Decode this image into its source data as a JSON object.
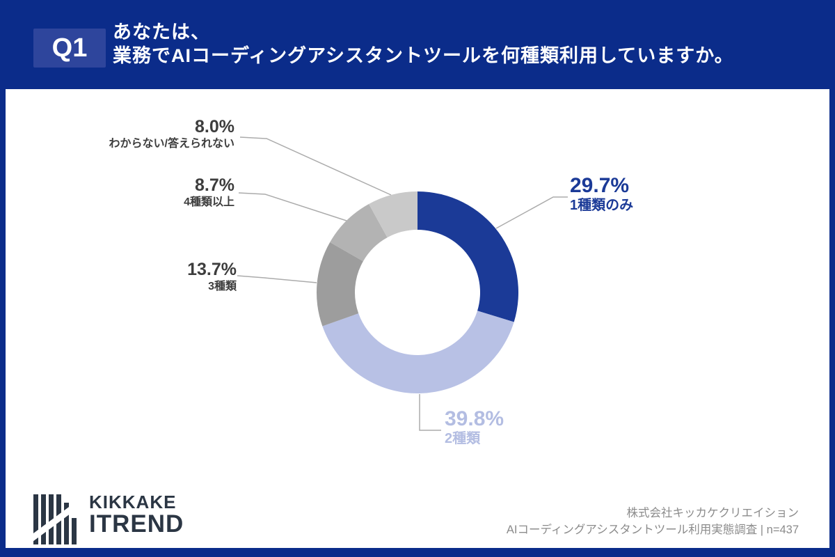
{
  "header": {
    "q_badge": "Q1",
    "title_line1": "あなたは、",
    "title_line2": "業務でAIコーディングアシスタントツールを何種類利用していますか。"
  },
  "chart_data": {
    "type": "pie",
    "subtype": "donut",
    "title": "あなたは、業務でAIコーディングアシスタントツールを何種類利用していますか。",
    "direction": "clockwise",
    "start_angle": 0,
    "inner_radius_ratio": 0.62,
    "leader_line_color": "#ababab",
    "segments": [
      {
        "label": "1種類のみ",
        "value": 29.7,
        "pct_label": "29.7%",
        "color": "#1b3a97",
        "text_color": "#1b3a97"
      },
      {
        "label": "2種類",
        "value": 39.8,
        "pct_label": "39.8%",
        "color": "#b8c1e5",
        "text_color": "#b3bde2"
      },
      {
        "label": "3種類",
        "value": 13.7,
        "pct_label": "13.7%",
        "color": "#9d9d9d",
        "text_color": "#3d3d3d"
      },
      {
        "label": "4種類以上",
        "value": 8.7,
        "pct_label": "8.7%",
        "color": "#b3b3b3",
        "text_color": "#3d3d3d"
      },
      {
        "label": "わからない/答えられない",
        "value": 8.0,
        "pct_label": "8.0%",
        "color": "#c9c9c9",
        "text_color": "#3d3d3d"
      }
    ]
  },
  "footer": {
    "logo_line1": "KIKKAKE",
    "logo_line2": "ITREND",
    "credit_line1": "株式会社キッカケクリエイション",
    "credit_line2": "AIコーディングアシスタントツール利用実態調査 | n=437"
  }
}
